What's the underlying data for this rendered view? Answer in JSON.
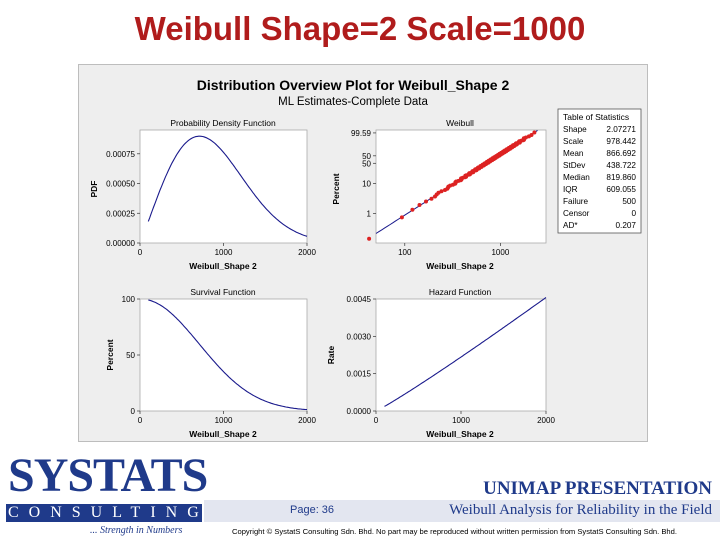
{
  "slide": {
    "title": "Weibull Shape=2 Scale=1000",
    "page_label": "Page: 36",
    "brand": "UNIMAP PRESENTATION",
    "footer_title": "Weibull Analysis for Reliability in the Field",
    "copyright": "Copyright © SystatS Consulting Sdn. Bhd. No part may be reproduced without written permission from SystatS Consulting Sdn. Bhd."
  },
  "logo": {
    "word": "SYSTATS",
    "sub": "CONSULTING",
    "tagline": "... Strength in Numbers"
  },
  "figure": {
    "title": "Distribution Overview Plot for Weibull_Shape 2",
    "subtitle": "ML Estimates-Complete Data"
  },
  "stats_table": {
    "title": "Table of Statistics",
    "rows": [
      {
        "label": "Shape",
        "value": "2.07271"
      },
      {
        "label": "Scale",
        "value": "978.442"
      },
      {
        "label": "Mean",
        "value": "866.692"
      },
      {
        "label": "StDev",
        "value": "438.722"
      },
      {
        "label": "Median",
        "value": "819.860"
      },
      {
        "label": "IQR",
        "value": "609.055"
      },
      {
        "label": "Failure",
        "value": "500"
      },
      {
        "label": "Censor",
        "value": "0"
      },
      {
        "label": "AD*",
        "value": "0.207"
      }
    ]
  },
  "colors": {
    "title_red": "#b01c1c",
    "curve_blue": "#1a1a8c",
    "point_red": "#dd2222",
    "brand_blue": "#1f3a8a"
  },
  "chart_data": [
    {
      "type": "line",
      "title": "Probability Density Function",
      "xlabel": "Weibull_Shape 2",
      "ylabel": "PDF",
      "xlim": [
        0,
        2000
      ],
      "ylim": [
        0,
        0.00095
      ],
      "xticks": [
        "0",
        "1000",
        "2000"
      ],
      "yticks": [
        "0.00000",
        "0.00025",
        "0.00050",
        "0.00075"
      ],
      "series": [
        {
          "shape": 2.07271,
          "scale": 978.442,
          "x_range": [
            100,
            2000
          ]
        }
      ]
    },
    {
      "type": "scatter",
      "title": "Weibull",
      "xlabel": "Weibull_Shape 2",
      "ylabel": "Percent",
      "scale": "log-weibull",
      "xlim": [
        50,
        3000
      ],
      "ylim": [
        0.1,
        99.9
      ],
      "xticks": [
        "100",
        "1000"
      ],
      "yticks": [
        "1",
        "10",
        "50",
        "50",
        "99.59"
      ],
      "series": [
        {
          "shape": 2.07271,
          "scale": 978.442,
          "n": 500
        }
      ]
    },
    {
      "type": "line",
      "title": "Survival Function",
      "xlabel": "Weibull_Shape 2",
      "ylabel": "Percent",
      "xlim": [
        0,
        2000
      ],
      "ylim": [
        0,
        100
      ],
      "xticks": [
        "0",
        "1000",
        "2000"
      ],
      "yticks": [
        "0",
        "50",
        "100"
      ],
      "series": [
        {
          "shape": 2.07271,
          "scale": 978.442,
          "x_range": [
            100,
            2000
          ]
        }
      ]
    },
    {
      "type": "line",
      "title": "Hazard Function",
      "xlabel": "Weibull_Shape 2",
      "ylabel": "Rate",
      "xlim": [
        0,
        2000
      ],
      "ylim": [
        0,
        0.0045
      ],
      "xticks": [
        "0",
        "1000",
        "2000"
      ],
      "yticks": [
        "0.0000",
        "0.0015",
        "0.0030",
        "0.0045"
      ],
      "series": [
        {
          "shape": 2.07271,
          "scale": 978.442,
          "x_range": [
            100,
            2000
          ]
        }
      ]
    }
  ]
}
